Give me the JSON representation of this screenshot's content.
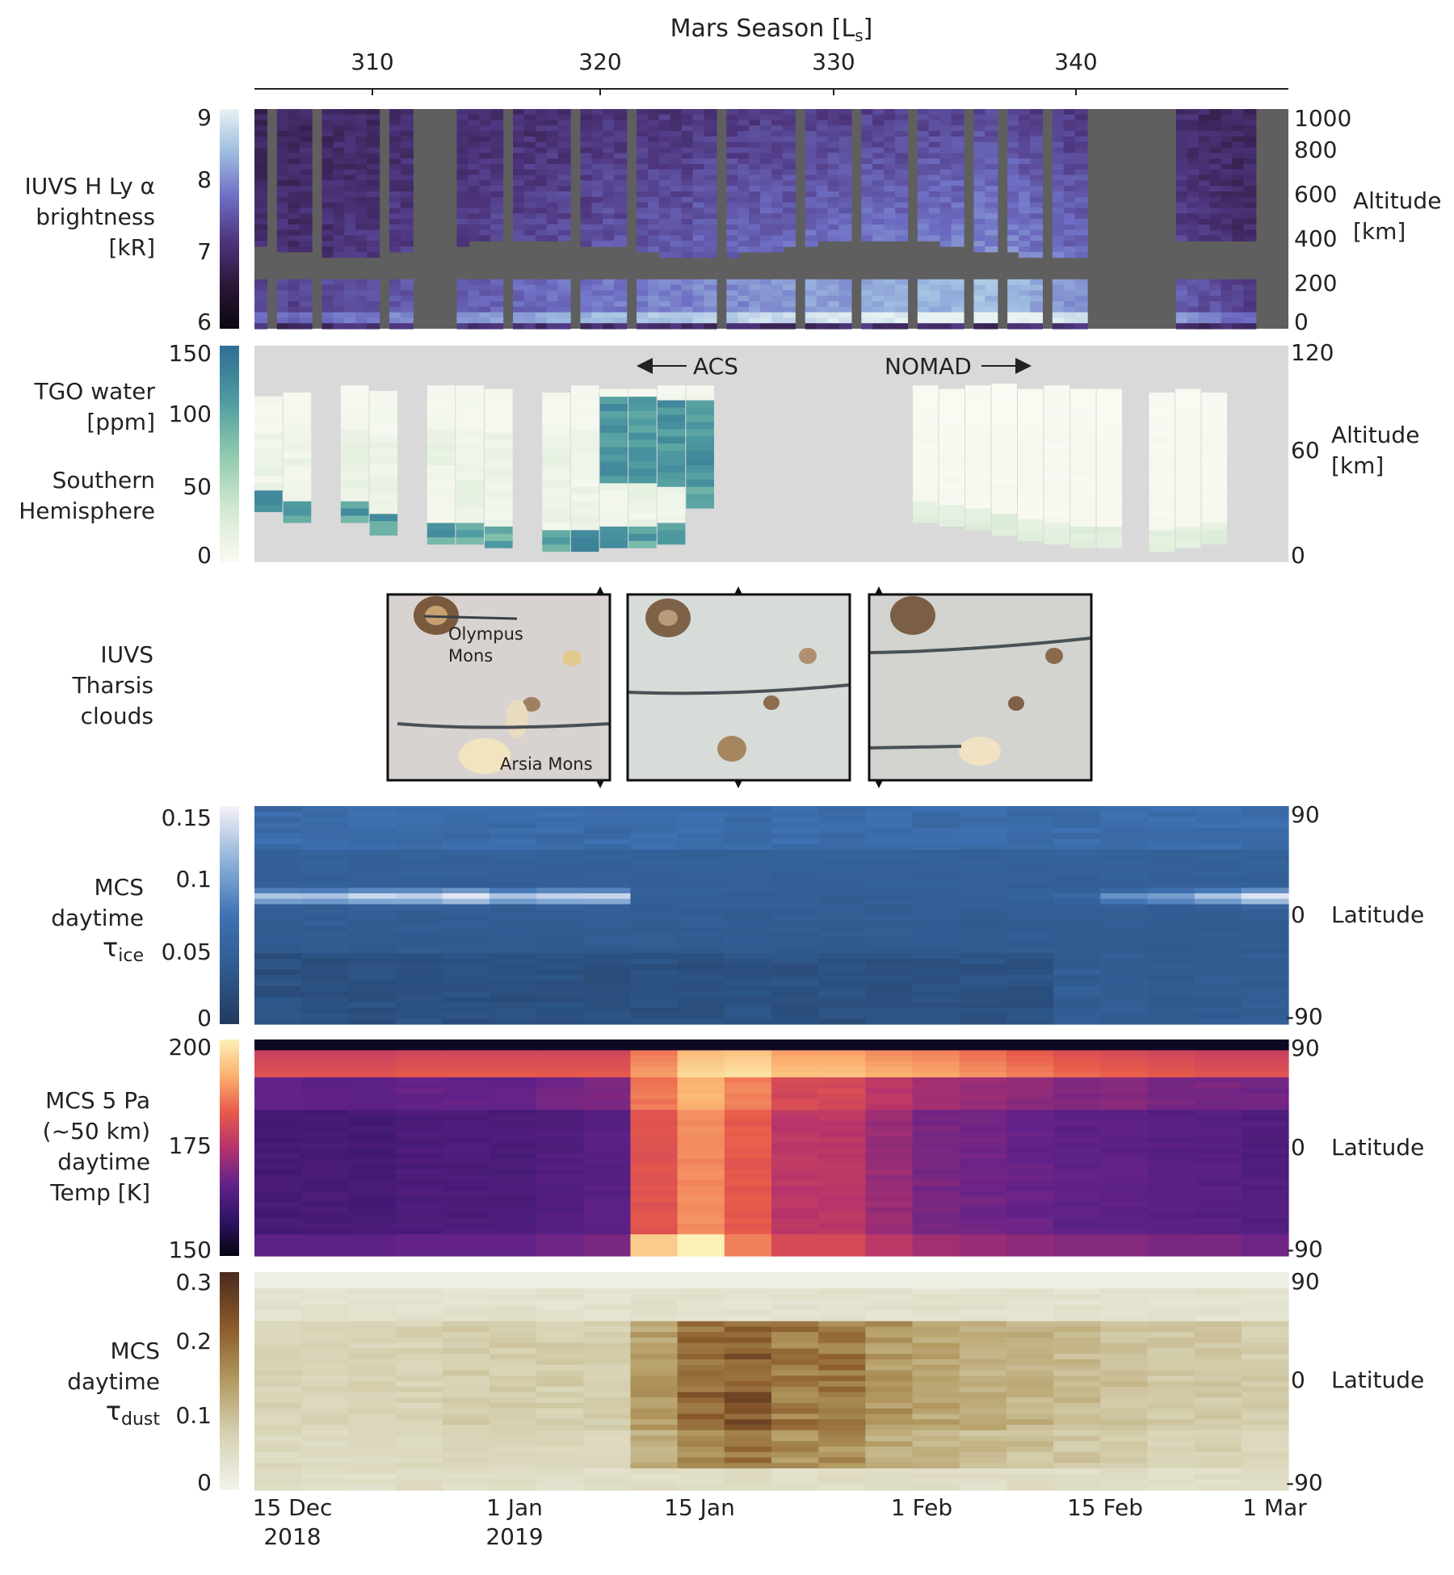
{
  "figure": {
    "top_axis": {
      "title_main": "Mars Season [L",
      "title_sub": "s",
      "title_end": "]",
      "ticks": [
        "310",
        "320",
        "330",
        "340"
      ]
    },
    "bottom_axis": {
      "ticks": [
        {
          "line1": "15 Dec",
          "line2": "2018"
        },
        {
          "line1": "1 Jan",
          "line2": "2019"
        },
        {
          "line1": "15 Jan",
          "line2": ""
        },
        {
          "line1": "1 Feb",
          "line2": ""
        },
        {
          "line1": "15 Feb",
          "line2": ""
        },
        {
          "line1": "1 Mar",
          "line2": ""
        }
      ]
    },
    "panels": [
      {
        "id": "iuvs",
        "row_label": [
          "IUVS H Ly α",
          "brightness",
          "[kR]"
        ],
        "cbar_ticks": [
          "9",
          "8",
          "7",
          "6"
        ],
        "right_ticks": [
          "1000",
          "800",
          "600",
          "400",
          "200",
          "0"
        ],
        "right_label": [
          "Altitude",
          "[km]"
        ],
        "colormap": [
          "#0b0810",
          "#2b1738",
          "#4e357e",
          "#6e6ec4",
          "#9dbbe0",
          "#e8f2f3"
        ]
      },
      {
        "id": "tgo",
        "row_label": [
          "TGO water",
          "[ppm]",
          "",
          "Southern",
          "Hemisphere"
        ],
        "cbar_ticks": [
          "150",
          "100",
          "50",
          "0"
        ],
        "right_ticks": [
          "120",
          "60",
          "0"
        ],
        "right_label": [
          "Altitude",
          "[km]"
        ],
        "annotations": {
          "acs": "ACS",
          "nomad": "NOMAD"
        },
        "colormap": [
          "#fafaf3",
          "#d2e8d0",
          "#8ec9ae",
          "#4d9aa0",
          "#2f6d95"
        ]
      },
      {
        "id": "clouds",
        "row_label": [
          "IUVS",
          "Tharsis",
          "clouds"
        ],
        "image_labels": [
          "Olympus",
          "Mons",
          "Arsia Mons"
        ]
      },
      {
        "id": "ice",
        "row_label": [
          "MCS",
          "daytime",
          "τ",
          "ice"
        ],
        "cbar_ticks": [
          "0.15",
          "0.1",
          "0.05",
          "0"
        ],
        "right_ticks": [
          "90",
          "0",
          "-90"
        ],
        "right_label": [
          "Latitude"
        ],
        "colormap": [
          "#223a5e",
          "#2f5a8e",
          "#3e72b3",
          "#8fb3d9",
          "#f6f1f8"
        ]
      },
      {
        "id": "temp",
        "row_label": [
          "MCS 5 Pa",
          "(~50 km)",
          "daytime",
          "Temp [K]"
        ],
        "cbar_ticks": [
          "200",
          "175",
          "150"
        ],
        "right_ticks": [
          "90",
          "0",
          "-90"
        ],
        "right_label": [
          "Latitude"
        ],
        "colormap": [
          "#050410",
          "#2f1466",
          "#62228a",
          "#b5336b",
          "#e85a4a",
          "#fbb16f",
          "#fcf1b6"
        ]
      },
      {
        "id": "dust",
        "row_label": [
          "MCS",
          "daytime",
          "τ",
          "dust"
        ],
        "cbar_ticks": [
          "0.3",
          "0.2",
          "0.1",
          "0"
        ],
        "right_ticks": [
          "90",
          "0",
          "-90"
        ],
        "right_label": [
          "Latitude"
        ],
        "colormap": [
          "#f2f3ec",
          "#d7d3b4",
          "#b39b62",
          "#8a5a2a",
          "#4a2a1e"
        ]
      }
    ],
    "colors": {
      "no_data_dark": "#5f5f5f",
      "no_data_light": "#d9d9d9",
      "dust_top": "#e6e8f0"
    }
  },
  "chart_data": [
    {
      "type": "heatmap",
      "title": "",
      "colorbar_label": "IUVS H Ly α brightness [kR]",
      "colorbar_range": [
        6,
        9
      ],
      "xlabel": "Mars Season [Ls]",
      "x_ticks": [
        310,
        320,
        330,
        340
      ],
      "ylabel": "Altitude [km]",
      "y_ticks": [
        0,
        200,
        400,
        600,
        800,
        1000
      ],
      "x_column_centers_Ls": [
        305.2,
        305.7,
        306.2,
        306.6,
        307.1,
        307.6,
        308.0,
        308.5,
        309.0,
        309.5,
        309.9,
        310.4,
        310.9,
        311.3,
        311.8,
        312.3,
        312.7,
        313.2,
        313.7,
        314.2,
        314.6,
        315.1,
        315.6,
        316.0,
        316.5,
        317.0,
        317.4,
        317.9,
        318.4,
        318.9,
        319.3,
        319.8,
        320.3,
        320.7,
        321.2,
        321.7,
        322.1,
        322.6,
        323.1,
        323.6,
        324.0,
        324.5,
        325.0,
        325.4,
        325.9,
        326.4,
        326.8,
        327.3,
        327.8,
        328.3,
        328.7,
        329.2,
        329.7,
        330.1,
        330.6,
        331.1,
        331.5,
        332.0,
        332.5,
        333.0,
        333.4,
        333.9,
        334.4,
        334.8,
        335.3,
        335.8,
        336.2,
        336.7,
        337.2,
        337.7,
        338.1,
        338.6,
        339.1,
        339.5,
        340.0,
        340.5,
        340.9,
        341.4,
        341.9,
        342.4,
        342.8,
        343.3,
        343.8,
        344.2,
        344.7,
        345.2,
        345.6,
        346.1,
        346.6,
        347.1,
        347.5,
        348.0
      ],
      "surface_peak_kR_by_column": [
        7.6,
        7.6,
        7.7,
        7.6,
        7.7,
        7.7,
        7.7,
        7.8,
        7.8,
        7.8,
        7.8,
        7.8,
        7.9,
        7.9,
        7.9,
        7.9,
        8.0,
        8.0,
        8.0,
        8.0,
        8.0,
        8.1,
        8.1,
        8.1,
        8.1,
        8.1,
        8.2,
        8.2,
        8.2,
        8.2,
        8.3,
        8.3,
        8.3,
        8.3,
        8.3,
        8.4,
        8.4,
        8.4,
        8.4,
        8.5,
        8.5,
        8.5,
        8.5,
        8.5,
        8.6,
        8.6,
        8.6,
        8.6,
        8.6,
        8.7,
        8.7,
        8.7,
        8.7,
        8.8,
        8.8,
        8.8,
        8.8,
        8.8,
        8.9,
        8.9,
        8.9,
        8.9,
        8.9,
        9.0,
        9.0,
        9.0,
        9.0,
        9.0,
        8.9,
        8.8,
        8.8,
        8.7,
        8.6,
        8.6,
        8.5,
        8.4,
        8.4,
        8.3,
        8.2,
        8.2,
        8.1,
        8.0,
        8.0,
        7.9,
        7.8,
        7.8,
        7.7,
        7.6,
        7.6,
        7.5,
        7.4,
        7.4
      ],
      "data_gaps_Ls": [
        [
          311.5,
          313.2
        ],
        [
          339.6,
          343.6
        ],
        [
          347.0,
          348.0
        ]
      ]
    },
    {
      "type": "heatmap",
      "title": "",
      "colorbar_label": "TGO water [ppm], Southern Hemisphere",
      "colorbar_range": [
        0,
        150
      ],
      "ylabel": "Altitude [km]",
      "y_ticks": [
        0,
        60,
        120
      ],
      "instruments": [
        {
          "name": "ACS",
          "x_range_Ls": [
            305.0,
            325.5
          ],
          "lower_cutoff_km": [
            28,
            22,
            25,
            22,
            15,
            12,
            10,
            10,
            8,
            6,
            6,
            6,
            8,
            8,
            10,
            30
          ],
          "upper_top_km": [
            90,
            92,
            94,
            95,
            94,
            96,
            95,
            97,
            96,
            95,
            94,
            95,
            96,
            96,
            95,
            96
          ],
          "near_surface_ppm": 135,
          "mid_ppm": 20
        },
        {
          "name": "NOMAD",
          "x_range_Ls": [
            328.0,
            349.0
          ],
          "lower_cutoff_km": [
            22,
            20,
            18,
            15,
            12,
            10,
            8,
            8,
            6,
            6,
            8,
            10
          ],
          "upper_top_km": [
            96,
            95,
            96,
            97,
            96,
            95,
            94,
            96,
            95,
            94,
            93,
            92
          ],
          "near_surface_ppm": 30,
          "mid_ppm": 5
        }
      ]
    },
    {
      "type": "heatmap",
      "title": "",
      "colorbar_label": "MCS daytime τ ice",
      "colorbar_range": [
        0,
        0.15
      ],
      "ylabel": "Latitude",
      "y_ticks": [
        -90,
        0,
        90
      ],
      "x_dates": [
        "2018-12-15",
        "2018-12-19",
        "2018-12-23",
        "2018-12-27",
        "2018-12-31",
        "2019-01-04",
        "2019-01-08",
        "2019-01-12",
        "2019-01-16",
        "2019-01-20",
        "2019-01-24",
        "2019-01-28",
        "2019-02-01",
        "2019-02-05",
        "2019-02-09",
        "2019-02-13",
        "2019-02-17",
        "2019-02-21",
        "2019-02-25",
        "2019-03-01"
      ],
      "equatorial_belt_tau": [
        0.12,
        0.13,
        0.13,
        0.14,
        0.12,
        0.13,
        0.13,
        0.04,
        0.03,
        0.03,
        0.04,
        0.04,
        0.04,
        0.04,
        0.05,
        0.06,
        0.09,
        0.1,
        0.12,
        0.14
      ],
      "background_tau": 0.04
    },
    {
      "type": "heatmap",
      "title": "",
      "colorbar_label": "MCS 5 Pa (~50 km) daytime Temp [K]",
      "colorbar_range": [
        150,
        200
      ],
      "ylabel": "Latitude",
      "y_ticks": [
        -90,
        0,
        90
      ],
      "x_dates": [
        "2018-12-15",
        "2018-12-19",
        "2018-12-23",
        "2018-12-27",
        "2018-12-31",
        "2019-01-04",
        "2019-01-08",
        "2019-01-12",
        "2019-01-16",
        "2019-01-20",
        "2019-01-24",
        "2019-01-28",
        "2019-02-01",
        "2019-02-05",
        "2019-02-09",
        "2019-02-13",
        "2019-02-17",
        "2019-02-21",
        "2019-02-25",
        "2019-03-01"
      ],
      "mid_latitude_temp_K": [
        163,
        163,
        164,
        164,
        164,
        165,
        166,
        183,
        189,
        184,
        177,
        173,
        170,
        169,
        168,
        167,
        167,
        166,
        166,
        165
      ],
      "north_high_lat_temp_K": [
        182,
        182,
        183,
        183,
        183,
        183,
        183,
        190,
        197,
        198,
        194,
        192,
        191,
        189,
        187,
        185,
        184,
        183,
        182,
        182
      ]
    },
    {
      "type": "heatmap",
      "title": "",
      "colorbar_label": "MCS daytime τ dust",
      "colorbar_range": [
        0,
        0.3
      ],
      "ylabel": "Latitude",
      "y_ticks": [
        -90,
        0,
        90
      ],
      "x_dates": [
        "2018-12-15",
        "2018-12-19",
        "2018-12-23",
        "2018-12-27",
        "2018-12-31",
        "2019-01-04",
        "2019-01-08",
        "2019-01-12",
        "2019-01-16",
        "2019-01-20",
        "2019-01-24",
        "2019-01-28",
        "2019-02-01",
        "2019-02-05",
        "2019-02-09",
        "2019-02-13",
        "2019-02-17",
        "2019-02-21",
        "2019-02-25",
        "2019-03-01"
      ],
      "mid_latitude_tau": [
        0.08,
        0.08,
        0.08,
        0.09,
        0.09,
        0.09,
        0.09,
        0.16,
        0.23,
        0.25,
        0.21,
        0.17,
        0.15,
        0.14,
        0.13,
        0.12,
        0.11,
        0.1,
        0.1,
        0.09
      ]
    }
  ]
}
